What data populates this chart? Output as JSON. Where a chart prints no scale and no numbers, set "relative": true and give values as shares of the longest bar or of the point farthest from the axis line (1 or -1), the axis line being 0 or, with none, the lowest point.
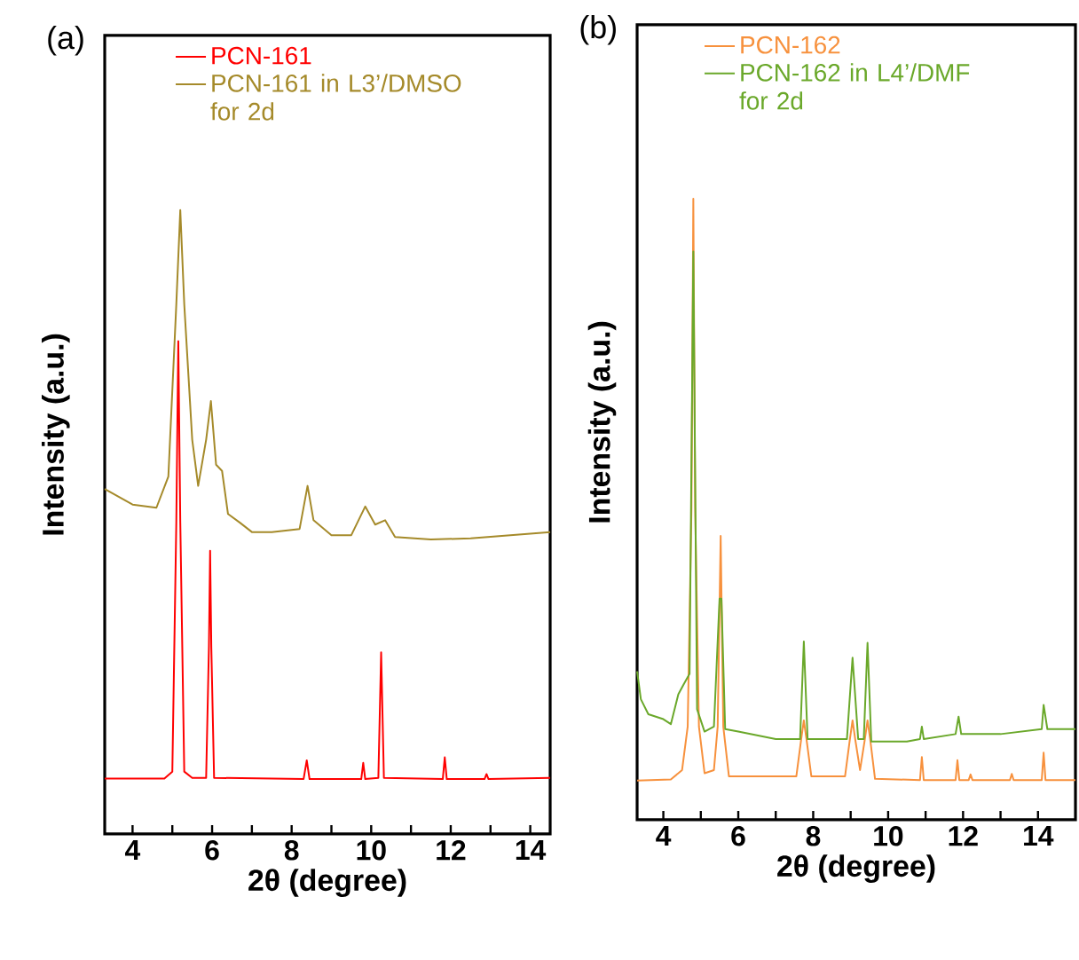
{
  "chart_data": [
    {
      "type": "line",
      "xlabel": "2θ (degree)",
      "ylabel": "Intensity (a.u.)",
      "relative": true,
      "legend": "top",
      "annotations": [
        "(a)"
      ],
      "xlim": [
        3.3,
        14.5
      ],
      "xticks": [
        4,
        {
          "value": 5,
          "label": null
        },
        6,
        {
          "value": 7,
          "label": null
        },
        8,
        {
          "value": 9,
          "label": null
        },
        10,
        {
          "value": 11,
          "label": null
        },
        12,
        {
          "value": 13,
          "label": null
        },
        14
      ],
      "series": [
        {
          "name": "PCN-161",
          "color": "#ff0000",
          "x": [
            3.3,
            4.8,
            5.0,
            5.1,
            5.15,
            5.2,
            5.3,
            5.5,
            5.85,
            5.92,
            5.95,
            5.98,
            6.05,
            8.3,
            8.38,
            8.45,
            9.75,
            9.8,
            9.85,
            10.18,
            10.25,
            10.32,
            11.8,
            11.85,
            11.9,
            12.85,
            12.9,
            12.95,
            14.5
          ],
          "values": [
            0.089,
            0.089,
            0.1,
            0.5,
            0.79,
            0.5,
            0.1,
            0.09,
            0.09,
            0.3,
            0.454,
            0.3,
            0.09,
            0.088,
            0.118,
            0.088,
            0.088,
            0.114,
            0.088,
            0.09,
            0.291,
            0.09,
            0.088,
            0.123,
            0.088,
            0.088,
            0.096,
            0.088,
            0.09
          ]
        },
        {
          "name": "PCN-161 in L3’/DMSO for 2d",
          "color": "#a58a2a",
          "x": [
            3.3,
            4.0,
            4.6,
            4.9,
            5.1,
            5.2,
            5.3,
            5.5,
            5.65,
            5.85,
            5.97,
            6.1,
            6.25,
            6.4,
            6.7,
            7.0,
            7.5,
            8.2,
            8.4,
            8.55,
            9.0,
            9.5,
            9.85,
            10.1,
            10.35,
            10.6,
            11.5,
            12.5,
            13.5,
            14.5
          ],
          "values": [
            0.553,
            0.528,
            0.523,
            0.573,
            0.849,
            1.0,
            0.849,
            0.632,
            0.558,
            0.632,
            0.694,
            0.592,
            0.582,
            0.513,
            0.499,
            0.484,
            0.484,
            0.489,
            0.558,
            0.503,
            0.479,
            0.479,
            0.525,
            0.496,
            0.503,
            0.476,
            0.472,
            0.474,
            0.479,
            0.484
          ]
        }
      ]
    },
    {
      "type": "line",
      "xlabel": "2θ (degree)",
      "ylabel": "Intensity (a.u.)",
      "relative": true,
      "legend": "top",
      "annotations": [
        "(b)"
      ],
      "xlim": [
        3.3,
        15.0
      ],
      "xticks": [
        4,
        {
          "value": 5,
          "label": null
        },
        6,
        {
          "value": 7,
          "label": null
        },
        8,
        {
          "value": 9,
          "label": null
        },
        10,
        {
          "value": 11,
          "label": null
        },
        12,
        {
          "value": 13,
          "label": null
        },
        14
      ],
      "series": [
        {
          "name": "PCN-162",
          "color": "#f7913d",
          "x": [
            3.3,
            4.2,
            4.5,
            4.65,
            4.75,
            4.8,
            4.85,
            4.95,
            5.1,
            5.35,
            5.45,
            5.53,
            5.6,
            5.75,
            7.55,
            7.68,
            7.75,
            7.82,
            7.95,
            8.85,
            8.98,
            9.05,
            9.12,
            9.25,
            9.38,
            9.45,
            9.52,
            9.65,
            10.85,
            10.9,
            10.95,
            11.8,
            11.85,
            11.9,
            12.15,
            12.2,
            12.25,
            13.25,
            13.3,
            13.35,
            14.1,
            14.15,
            14.2,
            15.0
          ],
          "values": [
            0.063,
            0.065,
            0.08,
            0.15,
            0.5,
            1.0,
            0.5,
            0.15,
            0.075,
            0.08,
            0.15,
            0.457,
            0.15,
            0.07,
            0.07,
            0.13,
            0.16,
            0.13,
            0.07,
            0.07,
            0.13,
            0.16,
            0.13,
            0.08,
            0.13,
            0.16,
            0.13,
            0.066,
            0.064,
            0.101,
            0.064,
            0.064,
            0.096,
            0.064,
            0.064,
            0.073,
            0.064,
            0.064,
            0.074,
            0.064,
            0.064,
            0.108,
            0.064,
            0.064
          ]
        },
        {
          "name": "PCN-162 in L4’/DMF for 2d",
          "color": "#6aa82a",
          "x": [
            3.3,
            3.4,
            3.6,
            4.0,
            4.2,
            4.4,
            4.55,
            4.7,
            4.8,
            4.9,
            5.1,
            5.35,
            5.5,
            5.55,
            5.65,
            6.0,
            7.0,
            7.65,
            7.75,
            7.85,
            8.9,
            9.05,
            9.2,
            9.35,
            9.45,
            9.55,
            10.5,
            10.85,
            10.9,
            10.95,
            11.8,
            11.88,
            11.95,
            13.0,
            14.1,
            14.15,
            14.25,
            15.0
          ],
          "values": [
            0.239,
            0.194,
            0.17,
            0.162,
            0.154,
            0.202,
            0.219,
            0.235,
            0.915,
            0.178,
            0.142,
            0.15,
            0.356,
            0.356,
            0.146,
            0.142,
            0.13,
            0.13,
            0.287,
            0.13,
            0.13,
            0.261,
            0.13,
            0.13,
            0.285,
            0.126,
            0.126,
            0.13,
            0.15,
            0.13,
            0.138,
            0.166,
            0.138,
            0.138,
            0.146,
            0.185,
            0.146,
            0.146
          ]
        }
      ]
    }
  ]
}
